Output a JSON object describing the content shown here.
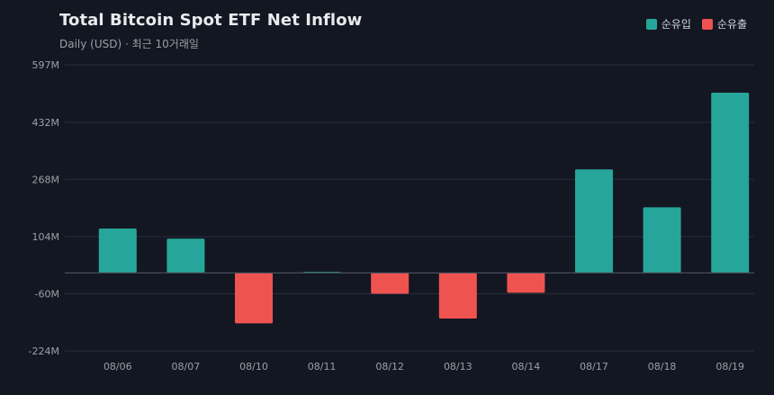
{
  "title": "Total Bitcoin Spot ETF Net Inflow",
  "subtitle": "Daily (USD) · 최근 10거래일",
  "legend": [
    {
      "label": "순유입",
      "color": "#26a69a"
    },
    {
      "label": "순유출",
      "color": "#ef5350"
    }
  ],
  "colors": {
    "background": "#131722",
    "grid": "#2a2e39",
    "axis_text": "#9aa0a6",
    "inflow": "#26a69a",
    "outflow": "#ef5350",
    "zero_line": "#4a4f5c"
  },
  "chart_data": {
    "type": "bar",
    "title": "Total Bitcoin Spot ETF Net Inflow",
    "subtitle": "Daily (USD) · 최근 10거래일",
    "categories": [
      "08/06",
      "08/07",
      "08/10",
      "08/11",
      "08/12",
      "08/13",
      "08/14",
      "08/17",
      "08/18",
      "08/19"
    ],
    "values": [
      127,
      98,
      -145,
      3,
      -60,
      -131,
      -57,
      297,
      188,
      517
    ],
    "unit": "M",
    "yticks": [
      -224,
      -60,
      104,
      268,
      432,
      597
    ],
    "ytick_labels": [
      "-224M",
      "-60M",
      "104M",
      "268M",
      "432M",
      "597M"
    ],
    "ylim": [
      -224,
      597
    ],
    "grid": true,
    "legend_position": "top-right"
  }
}
